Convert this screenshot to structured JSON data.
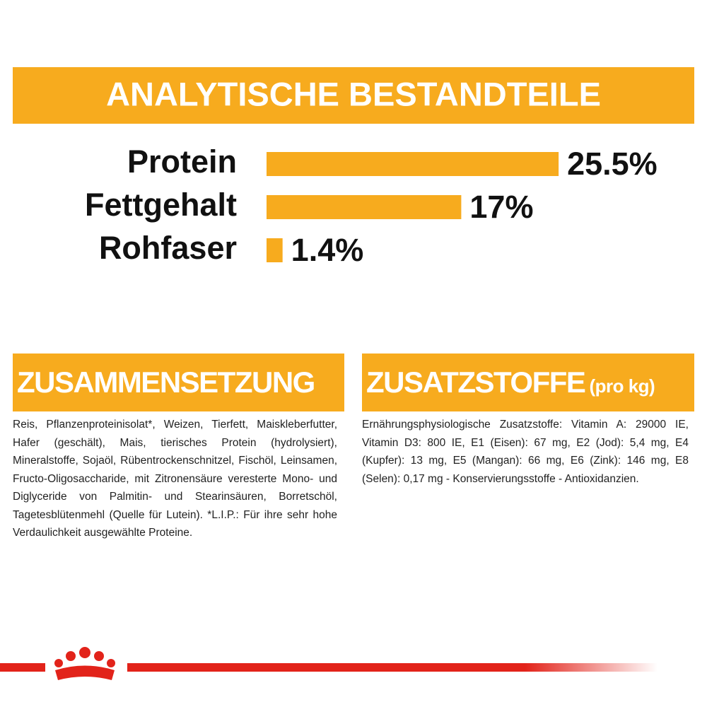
{
  "chart_data": {
    "type": "bar",
    "title": "ANALYTISCHE BESTANDTEILE",
    "categories": [
      "Protein",
      "Fettgehalt",
      "Rohfaser"
    ],
    "values": [
      25.5,
      17,
      1.4
    ],
    "value_labels": [
      "25.5%",
      "17%",
      "1.4%"
    ],
    "color": "#f7ab1e"
  },
  "sections": [
    {
      "title": "ZUSAMMENSETZUNG",
      "text": "Reis, Pflanzenproteinisolat*, Weizen, Tierfett, Maiskleberfutter, Hafer (geschält), Mais, tierisches Protein (hydrolysiert), Mineralstoffe, Sojaöl, Rübentrockenschnitzel, Fischöl, Leinsamen, Fructo-Oligosaccharide, mit Zitronensäure veresterte Mono- und Diglyceride von Palmitin- und Stearinsäuren, Borretschöl, Tagetesblütenmehl (Quelle für Lutein). *L.I.P.: Für ihre sehr hohe Verdaulichkeit ausgewählte Proteine."
    },
    {
      "title": "ZUSATZSTOFFE",
      "subtitle": "(pro kg)",
      "text": "Ernährungsphysiologische Zusatzstoffe: Vitamin A: 29000 IE, Vitamin D3: 800 IE, E1 (Eisen): 67 mg, E2 (Jod): 5,4 mg, E4 (Kupfer): 13 mg, E5 (Mangan): 66 mg, E6 (Zink): 146 mg, E8 (Selen): 0,17 mg - Konservierungsstoffe - Antioxidanzien."
    }
  ]
}
